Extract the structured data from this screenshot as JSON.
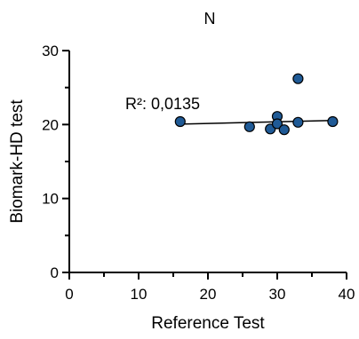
{
  "chart_data": {
    "type": "scatter",
    "title": "N",
    "xlabel": "Reference Test",
    "ylabel": "Biomark-HD test",
    "xlim": [
      0,
      40
    ],
    "ylim": [
      0,
      30
    ],
    "x_ticks": [
      "0",
      "10",
      "20",
      "30",
      "40"
    ],
    "y_ticks": [
      "0",
      "10",
      "20",
      "30"
    ],
    "grid": false,
    "points": [
      {
        "x": 16,
        "y": 20.4
      },
      {
        "x": 26,
        "y": 19.7
      },
      {
        "x": 29,
        "y": 19.4
      },
      {
        "x": 30,
        "y": 21.1
      },
      {
        "x": 30,
        "y": 20.1
      },
      {
        "x": 31,
        "y": 19.3
      },
      {
        "x": 33,
        "y": 26.2
      },
      {
        "x": 33,
        "y": 20.3
      },
      {
        "x": 38,
        "y": 20.4
      }
    ],
    "point_color": "#1f5a96",
    "regression": {
      "x": [
        16,
        38
      ],
      "y": [
        20.05,
        20.55
      ]
    },
    "annotation": "R²: 0,0135"
  }
}
